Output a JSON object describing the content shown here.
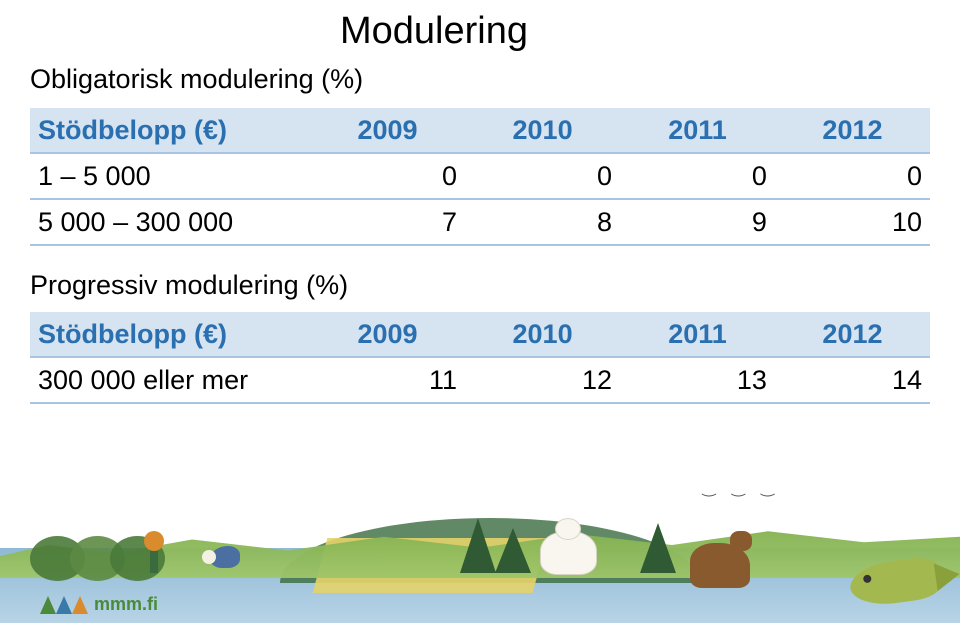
{
  "title": "Modulering",
  "section1": {
    "subtitle": "Obligatorisk modulering (%)",
    "headers": [
      "Stödbelopp (€)",
      "2009",
      "2010",
      "2011",
      "2012"
    ],
    "rows": [
      {
        "label": "1 – 5 000",
        "values": [
          "0",
          "0",
          "0",
          "0"
        ]
      },
      {
        "label": "5 000 – 300 000",
        "values": [
          "7",
          "8",
          "9",
          "10"
        ]
      }
    ]
  },
  "section2": {
    "subtitle": "Progressiv modulering (%)",
    "headers": [
      "Stödbelopp (€)",
      "2009",
      "2010",
      "2011",
      "2012"
    ],
    "rows": [
      {
        "label": "300 000 eller mer",
        "values": [
          "11",
          "12",
          "13",
          "14"
        ]
      }
    ]
  },
  "logo_text": "mmm.fi",
  "colors": {
    "header_bg": "#d6e3f0",
    "header_fg": "#2a6fb0",
    "row_border": "#a8c4e0"
  }
}
